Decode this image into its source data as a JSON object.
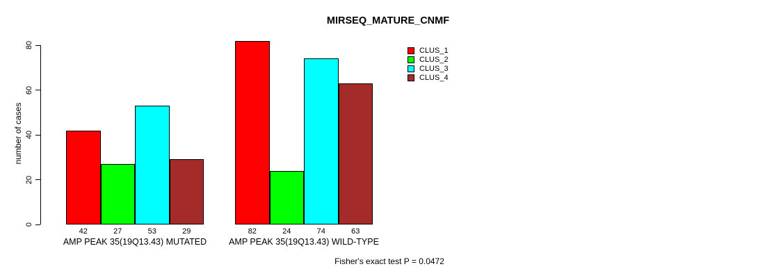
{
  "chart_data": {
    "type": "bar",
    "title": "MIRSEQ_MATURE_CNMF",
    "ylabel": "number of cases",
    "xlabel": "",
    "ylim": [
      0,
      80
    ],
    "yticks": [
      0,
      20,
      40,
      60,
      80
    ],
    "grid": false,
    "legend_position": "top-right",
    "categories": [
      "AMP PEAK 35(19Q13.43) MUTATED",
      "AMP PEAK 35(19Q13.43) WILD-TYPE"
    ],
    "series": [
      {
        "name": "CLUS_1",
        "color": "#ff0000",
        "values": [
          42,
          82
        ]
      },
      {
        "name": "CLUS_2",
        "color": "#00ff00",
        "values": [
          27,
          24
        ]
      },
      {
        "name": "CLUS_3",
        "color": "#00ffff",
        "values": [
          53,
          74
        ]
      },
      {
        "name": "CLUS_4",
        "color": "#a52a2a",
        "values": [
          29,
          63
        ]
      }
    ],
    "bar_value_labels": [
      [
        "42",
        "27",
        "53",
        "29"
      ],
      [
        "82",
        "24",
        "74",
        "63"
      ]
    ],
    "footer": "Fisher's exact test P = 0.0472"
  }
}
